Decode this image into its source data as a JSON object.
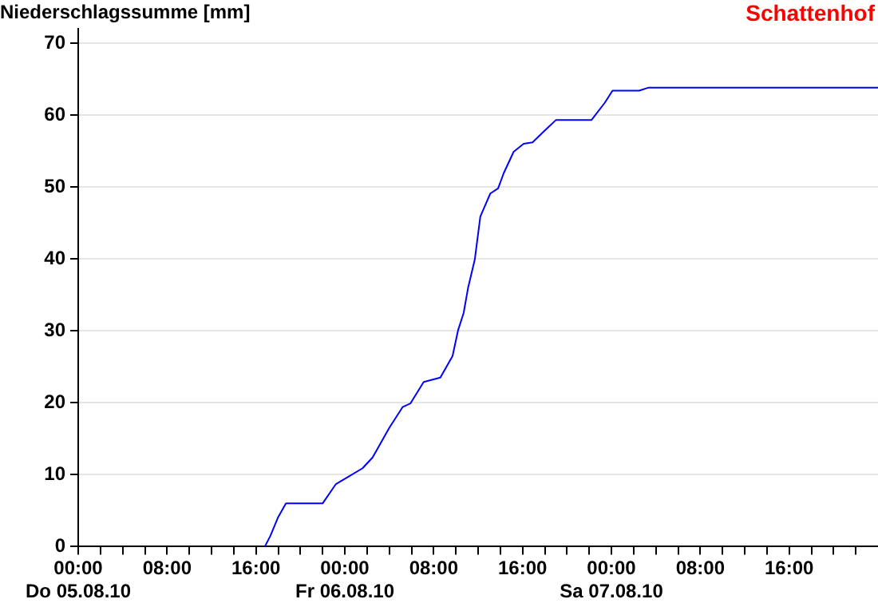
{
  "chart_data": {
    "type": "line",
    "ylabel": "Niederschlagssumme [mm]",
    "annotations": [
      "Schattenhof"
    ],
    "x": [
      "--08-05T16:48",
      "--08-05T17:18",
      "--08-05T18:00",
      "--08-05T18:42",
      "--08-05T22:00",
      "--08-05T23:12",
      "--08-06T00:12",
      "--08-06T01:36",
      "--08-06T02:30",
      "--08-06T04:00",
      "--08-06T05:12",
      "--08-06T05:54",
      "--08-06T07:06",
      "--08-06T08:36",
      "--08-06T09:42",
      "--08-06T10:12",
      "--08-06T10:42",
      "--08-06T11:06",
      "--08-06T11:42",
      "--08-06T12:12",
      "--08-06T13:06",
      "--08-06T13:48",
      "--08-06T14:18",
      "--08-06T15:12",
      "--08-06T16:06",
      "--08-06T16:54",
      "--08-06T17:54",
      "--08-06T19:00",
      "--08-06T22:12",
      "--08-06T23:24",
      "--08-07T00:06",
      "--08-07T02:30",
      "--08-07T03:18",
      "--08-08T00:00"
    ],
    "series": [
      {
        "color": "#0000ff",
        "values": [
          0,
          1.5,
          4.1,
          6.0,
          6.0,
          8.7,
          9.6,
          10.9,
          12.4,
          16.5,
          19.4,
          19.9,
          22.9,
          23.5,
          26.5,
          30.1,
          32.5,
          36.0,
          39.9,
          45.9,
          49.1,
          49.8,
          51.9,
          54.9,
          56.0,
          56.2,
          57.7,
          59.3,
          59.3,
          61.7,
          63.4,
          63.4,
          63.8,
          63.8
        ]
      }
    ],
    "xlim": [
      "--08-05T00:00",
      "--08-08T00:00"
    ],
    "xticks": [
      {
        "value": "--08-05T00:00",
        "label": "00:00\nDo 05.08.10"
      },
      {
        "value": "--08-05T02:00",
        "label": null
      },
      {
        "value": "--08-05T04:00",
        "label": null
      },
      {
        "value": "--08-05T06:00",
        "label": null
      },
      {
        "value": "--08-05T08:00",
        "label": "08:00"
      },
      {
        "value": "--08-05T10:00",
        "label": null
      },
      {
        "value": "--08-05T12:00",
        "label": null
      },
      {
        "value": "--08-05T14:00",
        "label": null
      },
      {
        "value": "--08-05T16:00",
        "label": "16:00"
      },
      {
        "value": "--08-05T18:00",
        "label": null
      },
      {
        "value": "--08-05T20:00",
        "label": null
      },
      {
        "value": "--08-05T22:00",
        "label": null
      },
      {
        "value": "--08-06T00:00",
        "label": "00:00\nFr 06.08.10"
      },
      {
        "value": "--08-06T02:00",
        "label": null
      },
      {
        "value": "--08-06T04:00",
        "label": null
      },
      {
        "value": "--08-06T06:00",
        "label": null
      },
      {
        "value": "--08-06T08:00",
        "label": "08:00"
      },
      {
        "value": "--08-06T10:00",
        "label": null
      },
      {
        "value": "--08-06T12:00",
        "label": null
      },
      {
        "value": "--08-06T14:00",
        "label": null
      },
      {
        "value": "--08-06T16:00",
        "label": "16:00"
      },
      {
        "value": "--08-06T18:00",
        "label": null
      },
      {
        "value": "--08-06T20:00",
        "label": null
      },
      {
        "value": "--08-06T22:00",
        "label": null
      },
      {
        "value": "--08-07T00:00",
        "label": "00:00\nSa 07.08.10"
      },
      {
        "value": "--08-07T02:00",
        "label": null
      },
      {
        "value": "--08-07T04:00",
        "label": null
      },
      {
        "value": "--08-07T06:00",
        "label": null
      },
      {
        "value": "--08-07T08:00",
        "label": "08:00"
      },
      {
        "value": "--08-07T10:00",
        "label": null
      },
      {
        "value": "--08-07T12:00",
        "label": null
      },
      {
        "value": "--08-07T14:00",
        "label": null
      },
      {
        "value": "--08-07T16:00",
        "label": "16:00"
      },
      {
        "value": "--08-07T18:00",
        "label": null
      },
      {
        "value": "--08-07T20:00",
        "label": null
      },
      {
        "value": "--08-07T22:00",
        "label": null
      }
    ],
    "ylim": [
      0,
      72
    ],
    "yticks": [
      0,
      10,
      20,
      30,
      40,
      50,
      60,
      70
    ],
    "grid": "y",
    "legend": false,
    "marker": "none",
    "line_style": "solid"
  }
}
